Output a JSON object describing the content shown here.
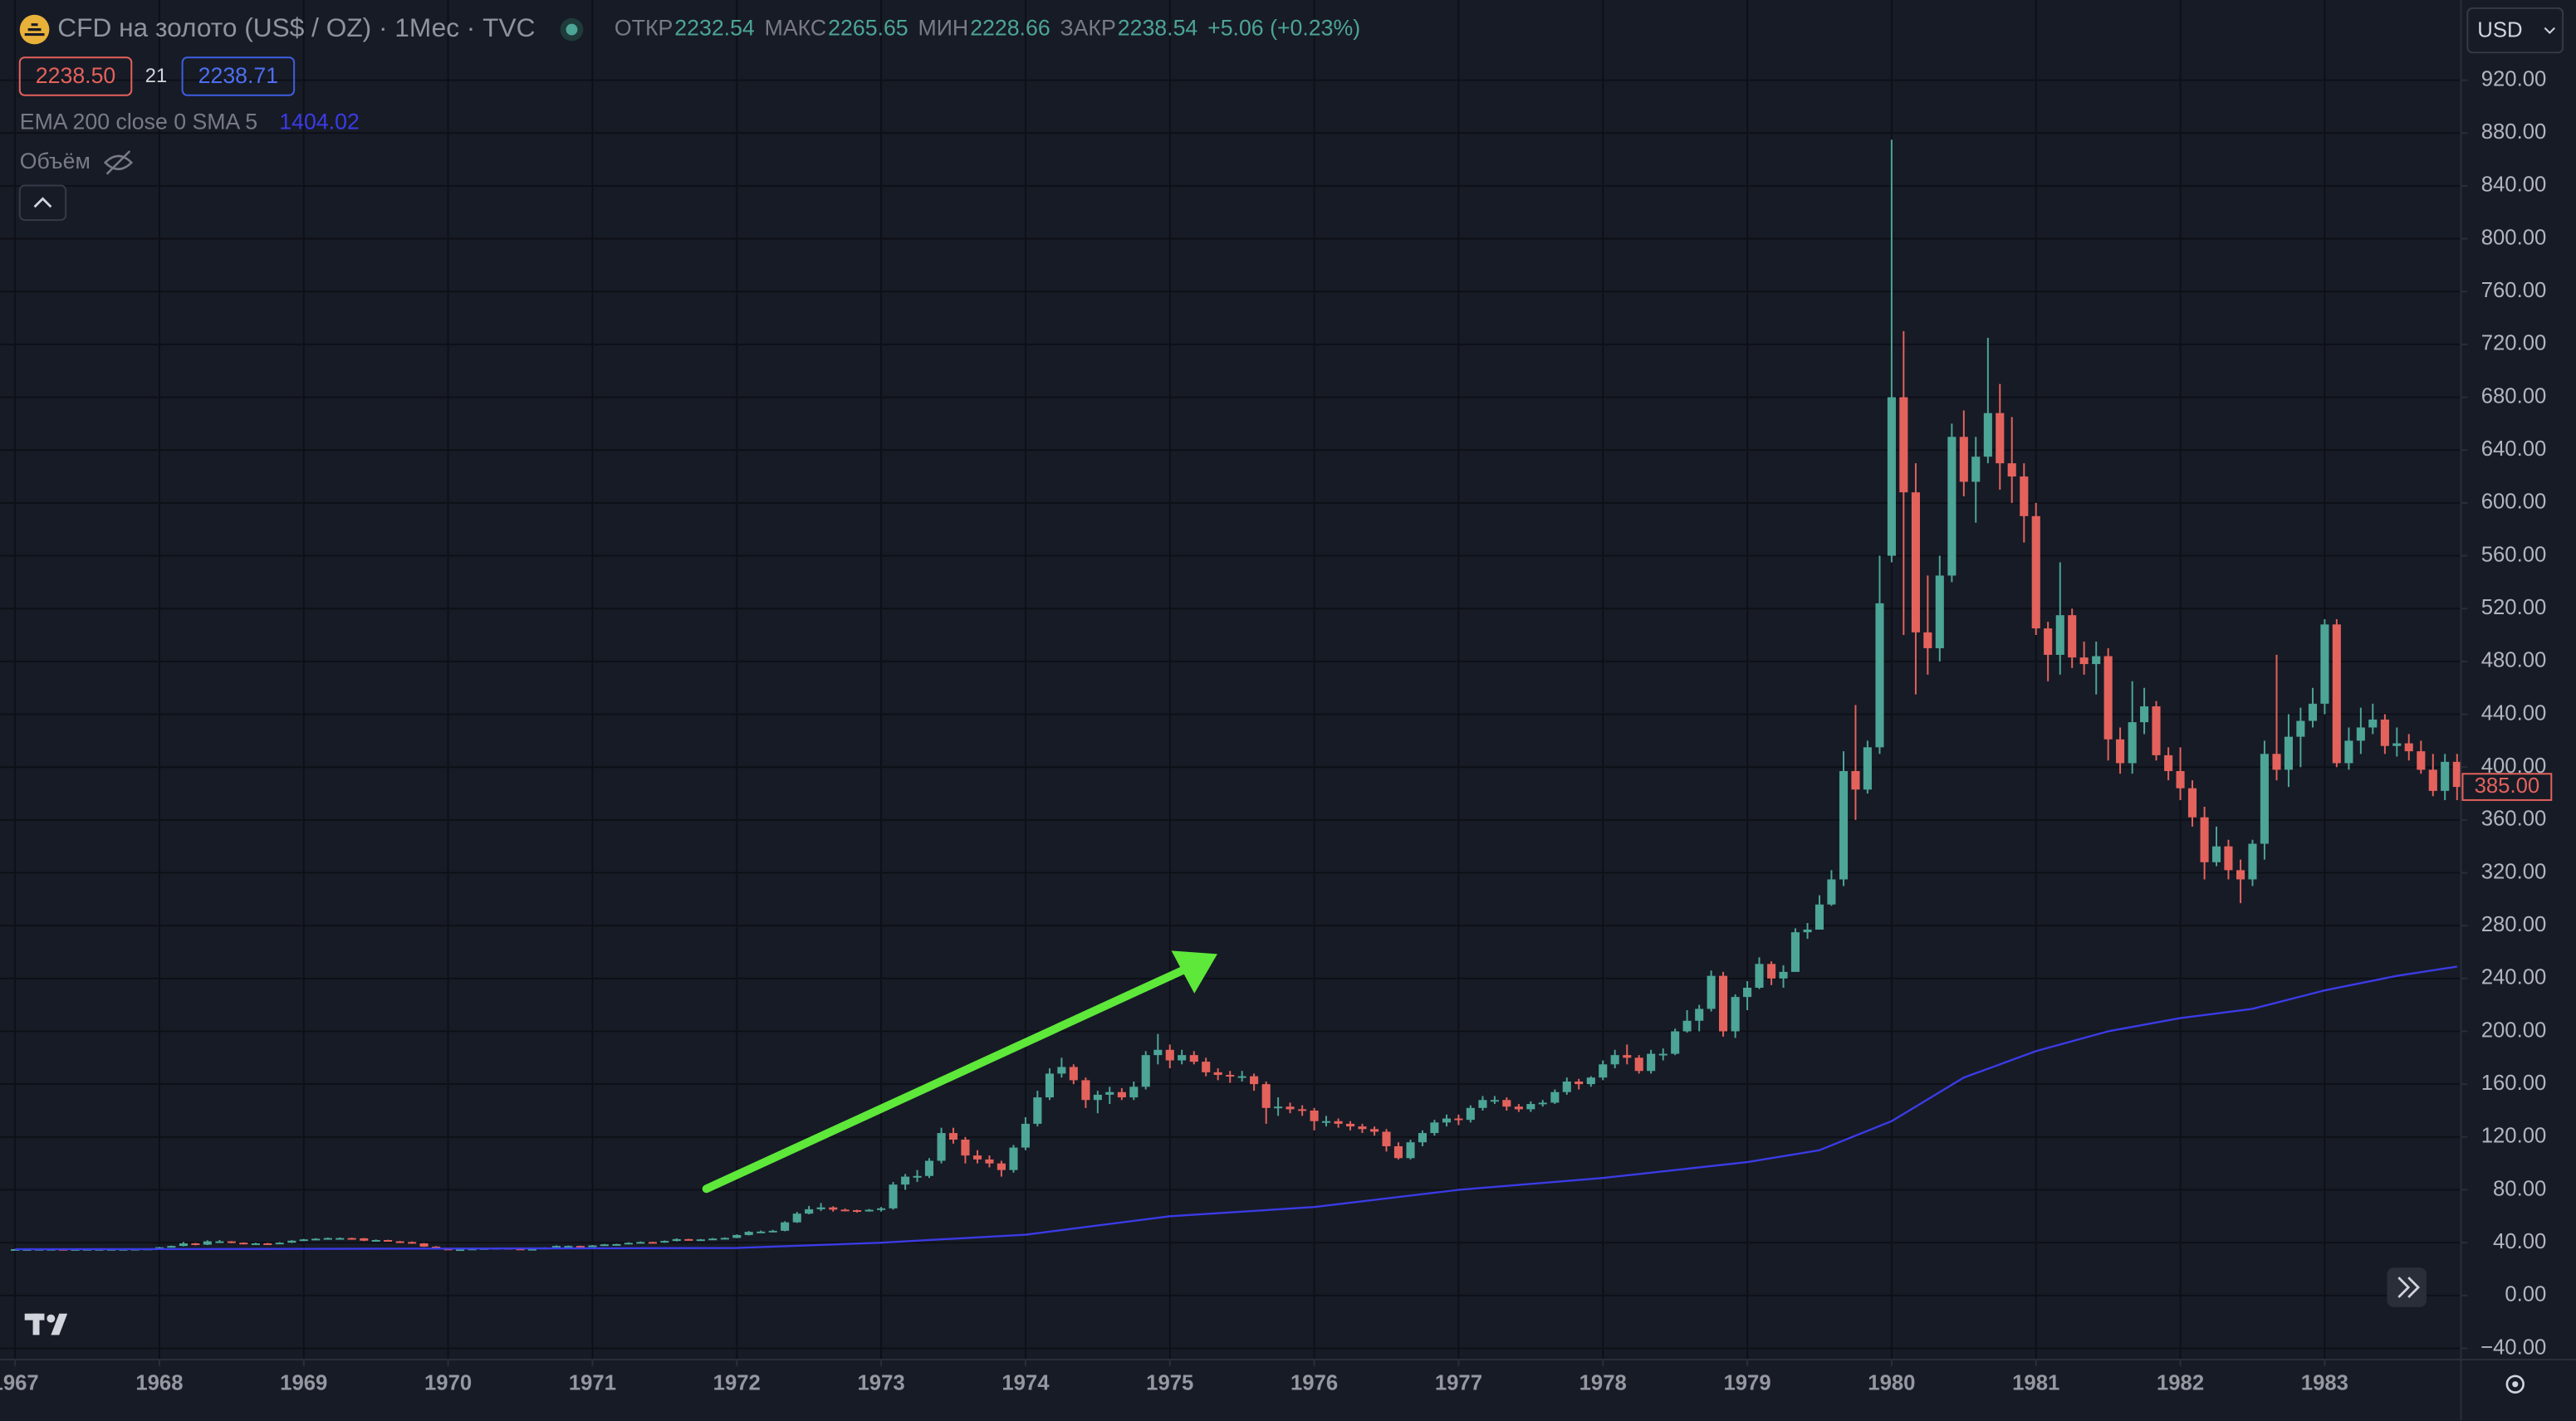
{
  "header": {
    "ohlc": [
      {
        "label": "ОТКР",
        "value": "2232.54"
      },
      {
        "label": "МАКС",
        "value": "2265.65"
      },
      {
        "label": "МИН",
        "value": "2228.66"
      },
      {
        "label": "ЗАКР",
        "value": "2238.54"
      }
    ],
    "change": "+5.06 (+0.23%)",
    "bid": "2238.50",
    "spread": "21",
    "ask": "2238.71",
    "indicator_value": "1404.02",
    "volume": "Объём"
  },
  "currency": "USD",
  "chart_data": {
    "type": "candlestick",
    "title": "CFD на золото (US$ / OZ) · 1Мес · TVC",
    "up_color": "#4ca597",
    "down_color": "#e4625c",
    "grid": true,
    "x": [
      1967,
      1967.083,
      1967.167,
      1967.25,
      1967.333,
      1967.417,
      1967.5,
      1967.583,
      1967.667,
      1967.75,
      1967.833,
      1967.917,
      1968,
      1968.083,
      1968.167,
      1968.25,
      1968.333,
      1968.417,
      1968.5,
      1968.583,
      1968.667,
      1968.75,
      1968.833,
      1968.917,
      1969,
      1969.083,
      1969.167,
      1969.25,
      1969.333,
      1969.417,
      1969.5,
      1969.583,
      1969.667,
      1969.75,
      1969.833,
      1969.917,
      1970,
      1970.083,
      1970.167,
      1970.25,
      1970.333,
      1970.417,
      1970.5,
      1970.583,
      1970.667,
      1970.75,
      1970.833,
      1970.917,
      1971,
      1971.083,
      1971.167,
      1971.25,
      1971.333,
      1971.417,
      1971.5,
      1971.583,
      1971.667,
      1971.75,
      1971.833,
      1971.917,
      1972,
      1972.083,
      1972.167,
      1972.25,
      1972.333,
      1972.417,
      1972.5,
      1972.583,
      1972.667,
      1972.75,
      1972.833,
      1972.917,
      1973,
      1973.083,
      1973.167,
      1973.25,
      1973.333,
      1973.417,
      1973.5,
      1973.583,
      1973.667,
      1973.75,
      1973.833,
      1973.917,
      1974,
      1974.083,
      1974.167,
      1974.25,
      1974.333,
      1974.417,
      1974.5,
      1974.583,
      1974.667,
      1974.75,
      1974.833,
      1974.917,
      1975,
      1975.083,
      1975.167,
      1975.25,
      1975.333,
      1975.417,
      1975.5,
      1975.583,
      1975.667,
      1975.75,
      1975.833,
      1975.917,
      1976,
      1976.083,
      1976.167,
      1976.25,
      1976.333,
      1976.417,
      1976.5,
      1976.583,
      1976.667,
      1976.75,
      1976.833,
      1976.917,
      1977,
      1977.083,
      1977.167,
      1977.25,
      1977.333,
      1977.417,
      1977.5,
      1977.583,
      1977.667,
      1977.75,
      1977.833,
      1977.917,
      1978,
      1978.083,
      1978.167,
      1978.25,
      1978.333,
      1978.417,
      1978.5,
      1978.583,
      1978.667,
      1978.75,
      1978.833,
      1978.917,
      1979,
      1979.083,
      1979.167,
      1979.25,
      1979.333,
      1979.417,
      1979.5,
      1979.583,
      1979.667,
      1979.75,
      1979.833,
      1979.917,
      1980,
      1980.083,
      1980.167,
      1980.25,
      1980.333,
      1980.417,
      1980.5,
      1980.583,
      1980.667,
      1980.75,
      1980.833,
      1980.917,
      1981,
      1981.083,
      1981.167,
      1981.25,
      1981.333,
      1981.417,
      1981.5,
      1981.583,
      1981.667,
      1981.75,
      1981.833,
      1981.917,
      1982,
      1982.083,
      1982.167,
      1982.25,
      1982.333,
      1982.417,
      1982.5,
      1982.583,
      1982.667,
      1982.75,
      1982.833,
      1982.917,
      1983,
      1983.083,
      1983.167,
      1983.25,
      1983.333,
      1983.417,
      1983.5,
      1983.583,
      1983.667,
      1983.75,
      1983.833,
      1983.917
    ],
    "open": [
      35.0,
      35.1,
      35.1,
      35.2,
      35.2,
      35.1,
      35.1,
      35.2,
      35.2,
      35.2,
      35.2,
      35.3,
      35.5,
      36.5,
      37.5,
      39.5,
      38.5,
      41.0,
      41.0,
      40.0,
      39.0,
      39.5,
      39.0,
      40.0,
      41.5,
      42.5,
      43.0,
      43.5,
      43.5,
      43.3,
      41.5,
      42.0,
      41.0,
      40.5,
      39.5,
      37.0,
      35.5,
      35.0,
      35.0,
      35.5,
      35.8,
      36.0,
      35.5,
      35.2,
      35.3,
      36.2,
      37.5,
      37.5,
      37.4,
      37.9,
      38.7,
      38.9,
      39.9,
      40.5,
      40.1,
      41.3,
      42.7,
      42.1,
      42.5,
      43.1,
      43.6,
      45.8,
      48.2,
      48.4,
      49.0,
      55.4,
      62.0,
      65.3,
      66.7,
      65.0,
      64.6,
      63.9,
      64.9,
      66,
      84,
      90,
      90.5,
      102,
      123,
      118,
      106,
      103,
      100,
      95,
      112,
      130,
      150,
      168,
      173,
      163,
      148,
      152,
      154,
      150,
      158,
      182,
      186,
      178,
      182,
      177,
      169,
      167,
      166,
      166,
      160,
      142,
      143,
      141,
      140,
      132,
      132,
      130,
      128,
      126,
      124,
      113,
      104,
      116,
      123,
      131,
      134,
      133,
      142,
      148,
      148,
      143,
      141,
      145,
      146,
      154,
      162,
      160,
      165,
      175,
      182,
      180,
      170,
      183,
      183,
      200,
      208,
      217,
      242,
      200,
      226,
      233,
      251,
      240,
      245,
      275,
      277,
      296,
      315,
      397,
      383,
      415,
      560,
      680,
      608,
      502,
      490,
      545,
      650,
      616,
      635,
      668,
      630,
      620,
      590,
      505,
      485,
      515,
      483,
      478,
      484,
      421,
      403,
      434,
      446,
      409,
      397,
      384,
      362,
      328,
      340,
      322,
      315,
      342,
      410,
      398,
      423,
      435,
      448,
      508,
      403,
      420,
      430,
      436,
      416,
      418,
      412,
      398,
      382,
      404
    ],
    "high": [
      35.2,
      35.2,
      35.3,
      35.3,
      35.3,
      35.2,
      35.3,
      35.3,
      35.3,
      35.3,
      35.4,
      35.6,
      36.8,
      37.8,
      40.5,
      39.8,
      41.8,
      42.0,
      41.2,
      40.2,
      39.9,
      39.8,
      40.4,
      41.9,
      42.9,
      43.4,
      43.9,
      43.9,
      43.8,
      43.5,
      42.4,
      42.2,
      41.3,
      40.9,
      39.7,
      37.4,
      35.7,
      35.3,
      35.7,
      36.0,
      36.3,
      36.2,
      35.7,
      35.5,
      36.5,
      37.9,
      37.8,
      37.7,
      38.2,
      39.0,
      39.2,
      40.3,
      40.9,
      40.7,
      41.7,
      43.3,
      42.9,
      42.8,
      43.5,
      44.0,
      46.3,
      48.8,
      49.2,
      49.7,
      56.2,
      63.3,
      67.8,
      70.0,
      67.5,
      65.8,
      65.0,
      65.5,
      67,
      86,
      92,
      95,
      104,
      127,
      127,
      120,
      110,
      106,
      102,
      114,
      135,
      155,
      172,
      180,
      175,
      165,
      155,
      158,
      157,
      162,
      185,
      198,
      190,
      186,
      185,
      180,
      172,
      170,
      170,
      168,
      162,
      150,
      146,
      144,
      142,
      136,
      134,
      132,
      130,
      128,
      126,
      116,
      118,
      125,
      133,
      137,
      137,
      144,
      151,
      151,
      150,
      145,
      147,
      148,
      156,
      165,
      164,
      166,
      178,
      186,
      190,
      182,
      186,
      187,
      202,
      216,
      220,
      246,
      245,
      228,
      238,
      256,
      253,
      250,
      278,
      282,
      303,
      322,
      412,
      447,
      420,
      560,
      875,
      730,
      630,
      545,
      560,
      660,
      670,
      650,
      725,
      690,
      665,
      630,
      600,
      510,
      555,
      520,
      495,
      495,
      490,
      430,
      465,
      460,
      450,
      415,
      415,
      390,
      370,
      355,
      345,
      330,
      345,
      420,
      485,
      440,
      445,
      460,
      512,
      512,
      430,
      445,
      448,
      440,
      430,
      425,
      420,
      410,
      410,
      410
    ],
    "low": [
      34.9,
      35.0,
      35.0,
      35.1,
      35.0,
      35.0,
      35.0,
      35.1,
      35.1,
      35.1,
      35.1,
      35.2,
      35.3,
      36.2,
      37.2,
      38.0,
      38.2,
      40.4,
      39.6,
      38.7,
      38.8,
      38.7,
      38.8,
      39.8,
      41.2,
      42.2,
      42.7,
      43.1,
      43.0,
      41.2,
      41.2,
      40.8,
      40.2,
      39.2,
      36.8,
      35.1,
      34.8,
      34.8,
      34.9,
      35.3,
      35.6,
      35.3,
      35.0,
      35.1,
      35.2,
      36.0,
      37.1,
      37.1,
      37.2,
      37.7,
      38.4,
      38.7,
      39.6,
      39.7,
      39.9,
      41.0,
      41.7,
      41.9,
      42.3,
      42.8,
      43.4,
      45.5,
      47.5,
      47.8,
      48.6,
      55.0,
      61.5,
      64.0,
      63.5,
      63.8,
      62.8,
      63.5,
      63.5,
      65,
      80,
      86,
      89,
      100,
      115,
      100,
      100,
      97,
      90,
      93,
      110,
      128,
      148,
      165,
      160,
      142,
      138,
      145,
      148,
      148,
      156,
      175,
      172,
      175,
      175,
      166,
      163,
      161,
      162,
      155,
      130,
      136,
      138,
      136,
      125,
      128,
      127,
      125,
      123,
      121,
      109,
      103,
      103,
      113,
      121,
      128,
      129,
      131,
      140,
      145,
      140,
      139,
      139,
      143,
      145,
      152,
      156,
      158,
      163,
      172,
      175,
      168,
      168,
      178,
      182,
      199,
      200,
      215,
      196,
      195,
      216,
      232,
      235,
      233,
      245,
      270,
      277,
      295,
      310,
      360,
      380,
      410,
      555,
      500,
      455,
      470,
      480,
      540,
      605,
      585,
      630,
      610,
      600,
      570,
      500,
      465,
      470,
      475,
      470,
      455,
      405,
      395,
      395,
      425,
      405,
      390,
      375,
      355,
      315,
      325,
      315,
      297,
      310,
      330,
      390,
      385,
      400,
      430,
      440,
      400,
      398,
      410,
      425,
      410,
      408,
      405,
      395,
      378,
      375,
      375
    ],
    "close": [
      35.1,
      35.1,
      35.2,
      35.2,
      35.1,
      35.1,
      35.2,
      35.2,
      35.2,
      35.2,
      35.3,
      35.5,
      36.5,
      37.5,
      39.5,
      38.5,
      41.0,
      41.0,
      40.0,
      39.0,
      39.5,
      39.0,
      40.0,
      41.5,
      42.5,
      43.0,
      43.5,
      43.5,
      43.3,
      41.5,
      42.0,
      41.0,
      40.5,
      39.5,
      37.0,
      35.5,
      35.0,
      35.0,
      35.5,
      35.8,
      36.0,
      35.5,
      35.2,
      35.3,
      36.2,
      37.5,
      37.5,
      37.4,
      37.9,
      38.7,
      38.9,
      39.9,
      40.5,
      40.1,
      41.3,
      42.7,
      42.1,
      42.5,
      43.1,
      43.6,
      45.8,
      48.2,
      48.4,
      49.0,
      55.4,
      62.0,
      65.3,
      66.7,
      65.0,
      64.6,
      63.9,
      64.9,
      66,
      84,
      90,
      90.5,
      102,
      123,
      118,
      106,
      103,
      100,
      95,
      112,
      130,
      150,
      168,
      173,
      163,
      148,
      152,
      154,
      150,
      158,
      182,
      186,
      178,
      182,
      177,
      169,
      167,
      166,
      166,
      160,
      142,
      143,
      141,
      140,
      132,
      132,
      130,
      128,
      126,
      124,
      113,
      104,
      116,
      123,
      131,
      134,
      133,
      142,
      148,
      148,
      143,
      141,
      145,
      146,
      154,
      162,
      160,
      165,
      175,
      182,
      180,
      170,
      183,
      183,
      200,
      208,
      217,
      242,
      200,
      226,
      233,
      251,
      240,
      245,
      275,
      277,
      296,
      315,
      397,
      383,
      415,
      524,
      680,
      608,
      502,
      490,
      545,
      650,
      616,
      635,
      668,
      630,
      620,
      590,
      505,
      485,
      515,
      483,
      478,
      484,
      421,
      403,
      434,
      446,
      409,
      397,
      384,
      362,
      328,
      340,
      322,
      315,
      342,
      410,
      398,
      423,
      435,
      448,
      508,
      403,
      420,
      430,
      436,
      416,
      418,
      412,
      398,
      382,
      404,
      385
    ],
    "last_price_label": "385.00",
    "series": [
      {
        "name": "EMA 200 close 0 SMA 5",
        "color": "#3b3be6",
        "x": [
          1967,
          1970,
          1972,
          1973,
          1974,
          1975,
          1976,
          1977,
          1978,
          1979,
          1979.5,
          1980,
          1980.5,
          1981,
          1981.5,
          1982,
          1982.5,
          1983,
          1983.5,
          1983.917
        ],
        "values": [
          35,
          35.5,
          36,
          40,
          46,
          60,
          67,
          80,
          89,
          101,
          110,
          132,
          165,
          185,
          200,
          210,
          217,
          231,
          242,
          249
        ]
      }
    ],
    "xlim": [
      1966.896,
      1983.944
    ],
    "xticks": [
      1967,
      1968,
      1969,
      1970,
      1971,
      1972,
      1973,
      1974,
      1975,
      1976,
      1977,
      1978,
      1979,
      1980,
      1981,
      1982,
      1983
    ],
    "ylim": [
      -48.5,
      980.7
    ],
    "yticks": [
      {
        "value": -40,
        "label": "−40.00"
      },
      {
        "value": 0,
        "label": "0.00"
      },
      {
        "value": 40,
        "label": "40.00"
      },
      {
        "value": 80,
        "label": "80.00"
      },
      {
        "value": 120,
        "label": "120.00"
      },
      {
        "value": 160,
        "label": "160.00"
      },
      {
        "value": 200,
        "label": "200.00"
      },
      {
        "value": 240,
        "label": "240.00"
      },
      {
        "value": 280,
        "label": "280.00"
      },
      {
        "value": 320,
        "label": "320.00"
      },
      {
        "value": 360,
        "label": "360.00"
      },
      {
        "value": 400,
        "label": "400.00"
      },
      {
        "value": 440,
        "label": "440.00"
      },
      {
        "value": 480,
        "label": "480.00"
      },
      {
        "value": 520,
        "label": "520.00"
      },
      {
        "value": 560,
        "label": "560.00"
      },
      {
        "value": 600,
        "label": "600.00"
      },
      {
        "value": 640,
        "label": "640.00"
      },
      {
        "value": 680,
        "label": "680.00"
      },
      {
        "value": 720,
        "label": "720.00"
      },
      {
        "value": 760,
        "label": "760.00"
      },
      {
        "value": 800,
        "label": "800.00"
      },
      {
        "value": 840,
        "label": "840.00"
      },
      {
        "value": 880,
        "label": "880.00"
      },
      {
        "value": 920,
        "label": "920.00"
      }
    ]
  }
}
